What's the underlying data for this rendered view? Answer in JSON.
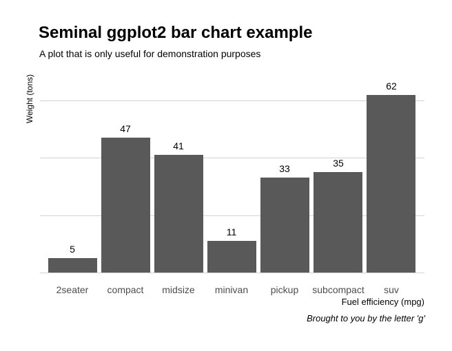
{
  "chart_data": {
    "type": "bar",
    "title": "Seminal ggplot2 bar chart example",
    "subtitle": "A plot that is only useful for demonstration purposes",
    "caption": "Brought to you by the letter 'g'",
    "xlabel": "Fuel efficiency (mpg)",
    "ylabel": "Weight (tons)",
    "categories": [
      "2seater",
      "compact",
      "midsize",
      "minivan",
      "pickup",
      "subcompact",
      "suv"
    ],
    "values": [
      5,
      47,
      41,
      11,
      33,
      35,
      62
    ],
    "bar_value_labels": [
      "5",
      "47",
      "41",
      "11",
      "33",
      "35",
      "62"
    ],
    "ylim": [
      0,
      67
    ],
    "y_gridlines": [
      0,
      20,
      40,
      60
    ],
    "y_tick_labels_shown": false,
    "grid": "horizontal major gridlines only",
    "legend_position": "none",
    "orientation": "vertical",
    "colors": {
      "bar": "#595959",
      "gridline": "#d2d2d2",
      "tick_label_text": "#4d4d4d",
      "title_text": "#000000"
    }
  }
}
